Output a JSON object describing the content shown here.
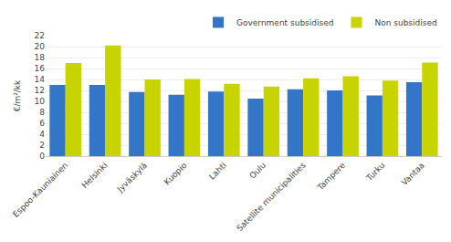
{
  "chart_data": {
    "type": "bar",
    "ylabel": "€/m²/kk",
    "categories": [
      "Espoo-Kauniainen",
      "Helsinki",
      "Jyväskylä",
      "Kuopio",
      "Lahti",
      "Oulu",
      "Satellite municipalities",
      "Tampere",
      "Turku",
      "Vantaa"
    ],
    "series": [
      {
        "name": "Government subsidised",
        "color": "#3376c8",
        "values": [
          13.0,
          13.0,
          11.7,
          11.2,
          11.8,
          10.5,
          12.2,
          12.0,
          11.1,
          13.5
        ]
      },
      {
        "name": "Non subsidised",
        "color": "#c8d400",
        "values": [
          17.0,
          20.2,
          14.0,
          14.1,
          13.2,
          12.7,
          14.2,
          14.6,
          13.8,
          17.1
        ]
      }
    ],
    "ylim": [
      0,
      22
    ],
    "yticks": [
      0,
      2,
      4,
      6,
      8,
      10,
      12,
      14,
      16,
      18,
      20,
      22
    ],
    "grid": true,
    "legend": "upper right"
  }
}
